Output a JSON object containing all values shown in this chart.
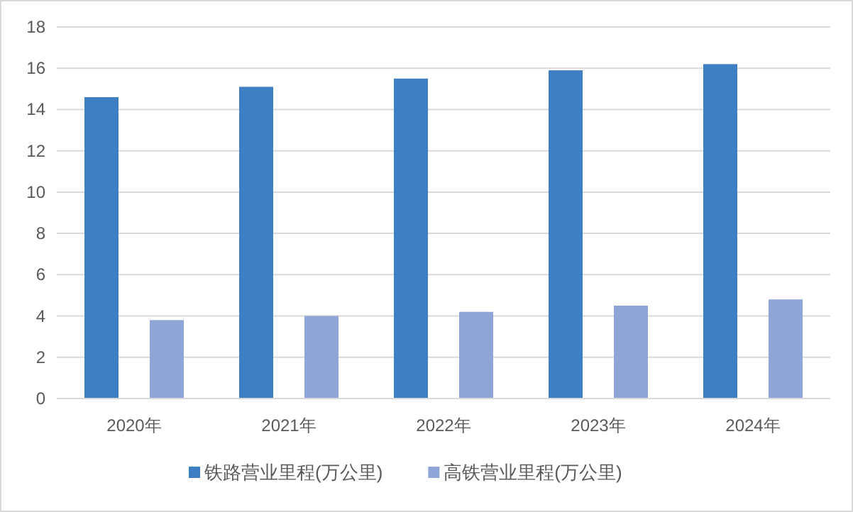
{
  "chart_data": {
    "type": "bar",
    "categories": [
      "2020年",
      "2021年",
      "2022年",
      "2023年",
      "2024年"
    ],
    "series": [
      {
        "name": "铁路营业里程(万公里)",
        "color": "#3d7fc2",
        "values": [
          14.6,
          15.1,
          15.5,
          15.9,
          16.2
        ]
      },
      {
        "name": "高铁营业里程(万公里)",
        "color": "#8fa5d7",
        "values": [
          3.8,
          4.0,
          4.2,
          4.5,
          4.8
        ]
      }
    ],
    "ylim": [
      0,
      18
    ],
    "yticks": [
      0,
      2,
      4,
      6,
      8,
      10,
      12,
      14,
      16,
      18
    ],
    "grid": "y",
    "legend": "bottom"
  }
}
